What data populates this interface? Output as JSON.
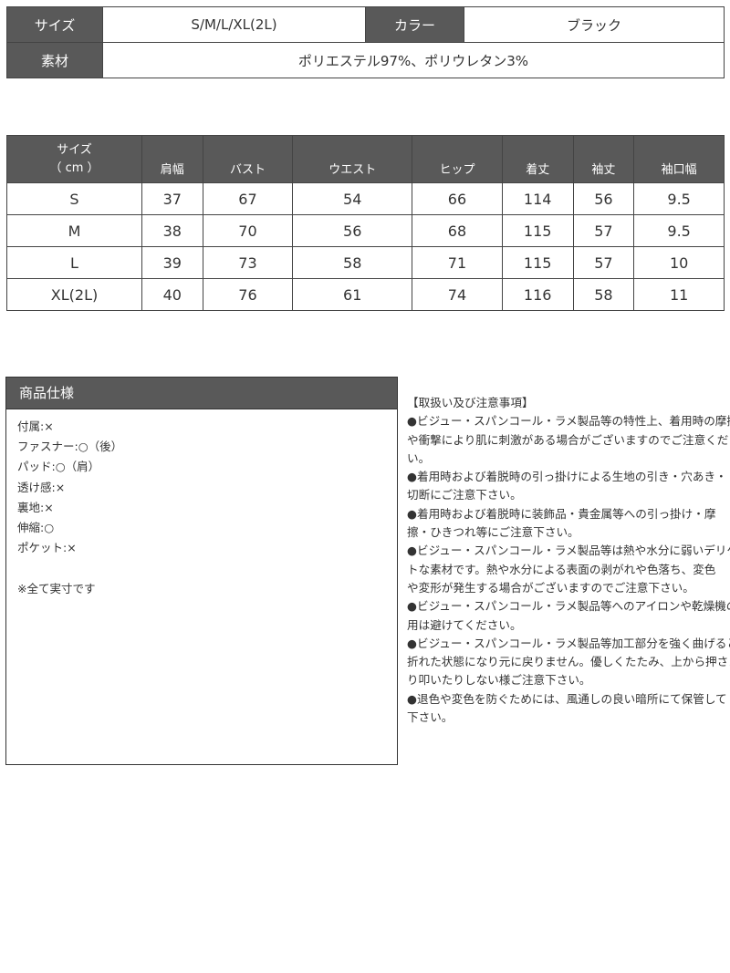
{
  "basic": {
    "size_label": "サイズ",
    "size_value": "S/M/L/XL(2L)",
    "color_label": "カラー",
    "color_value": "ブラック",
    "material_label": "素材",
    "material_value": "ポリエステル97%、ポリウレタン3%"
  },
  "size_table": {
    "header_line1": "サイズ",
    "header_line2": "（ cm ）",
    "columns": [
      "肩幅",
      "バスト",
      "ウエスト",
      "ヒップ",
      "着丈",
      "袖丈",
      "袖口幅"
    ],
    "rows": [
      {
        "size": "S",
        "values": [
          "37",
          "67",
          "54",
          "66",
          "114",
          "56",
          "9.5"
        ]
      },
      {
        "size": "M",
        "values": [
          "38",
          "70",
          "56",
          "68",
          "115",
          "57",
          "9.5"
        ]
      },
      {
        "size": "L",
        "values": [
          "39",
          "73",
          "58",
          "71",
          "115",
          "57",
          "10"
        ]
      },
      {
        "size": "XL(2L)",
        "values": [
          "40",
          "76",
          "61",
          "74",
          "116",
          "58",
          "11"
        ]
      }
    ]
  },
  "spec": {
    "title": "商品仕様",
    "items": [
      "付属:×",
      "ファスナー:○（後）",
      "パッド:○（肩）",
      "透け感:×",
      "裏地:×",
      "伸縮:○",
      "ポケット:×"
    ],
    "note": "※全て実寸です"
  },
  "notes": {
    "title": "【取扱い及び注意事項】",
    "lines": [
      "●ビジュー・スパンコール・ラメ製品等の特性上、着用時の摩擦",
      "や衝撃により肌に刺激がある場合がございますのでご注意くださ",
      "い。",
      "●着用時および着脱時の引っ掛けによる生地の引き・穴あき・",
      "切断にご注意下さい。",
      "●着用時および着脱時に装飾品・貴金属等への引っ掛け・摩",
      "擦・ひきつれ等にご注意下さい。",
      "●ビジュー・スパンコール・ラメ製品等は熱や水分に弱いデリケー",
      "トな素材です。熱や水分による表面の剥がれや色落ち、変色",
      "や変形が発生する場合がございますのでご注意下さい。",
      "●ビジュー・スパンコール・ラメ製品等へのアイロンや乾燥機の使",
      "用は避けてください。",
      "●ビジュー・スパンコール・ラメ製品等加工部分を強く曲げると",
      "折れた状態になり元に戻りません。優しくたたみ、上から押さえた",
      "り叩いたりしない様ご注意下さい。",
      "●退色や変色を防ぐためには、風通しの良い暗所にて保管して",
      "下さい。"
    ]
  }
}
